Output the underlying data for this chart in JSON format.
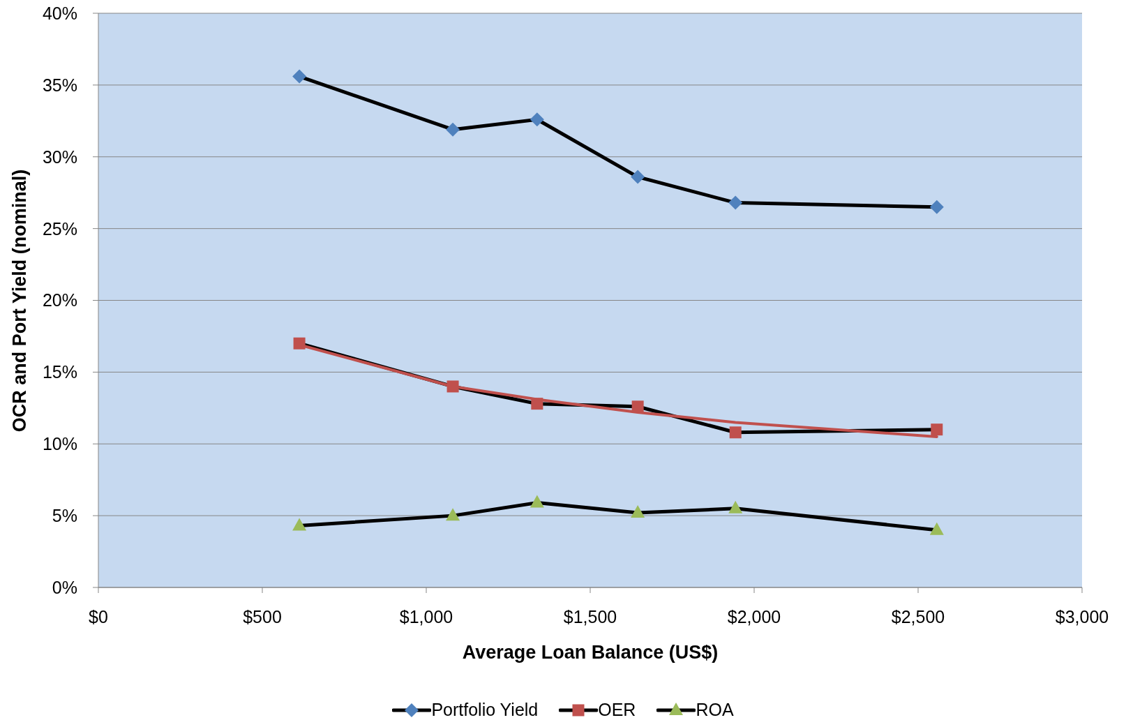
{
  "chart_data": {
    "type": "line",
    "xlabel": "Average Loan Balance (US$)",
    "ylabel": "OCR and Port Yield (nominal)",
    "x": [
      613,
      1081,
      1338,
      1645,
      1943,
      2557
    ],
    "xlim": [
      0,
      3000
    ],
    "xticks": [
      {
        "value": 0,
        "label": "$0"
      },
      {
        "value": 500,
        "label": "$500"
      },
      {
        "value": 1000,
        "label": "$1,000"
      },
      {
        "value": 1500,
        "label": "$1,500"
      },
      {
        "value": 2000,
        "label": "$2,000"
      },
      {
        "value": 2500,
        "label": "$2,500"
      },
      {
        "value": 3000,
        "label": "$3,000"
      }
    ],
    "ylim": [
      0,
      40
    ],
    "yticks": [
      {
        "value": 0,
        "label": "0%"
      },
      {
        "value": 5,
        "label": "5%"
      },
      {
        "value": 10,
        "label": "10%"
      },
      {
        "value": 15,
        "label": "15%"
      },
      {
        "value": 20,
        "label": "20%"
      },
      {
        "value": 25,
        "label": "25%"
      },
      {
        "value": 30,
        "label": "30%"
      },
      {
        "value": 35,
        "label": "35%"
      },
      {
        "value": 40,
        "label": "40%"
      }
    ],
    "grid": "y",
    "legend": "bottom",
    "line_style": "solid",
    "series": [
      {
        "name": "Portfolio Yield",
        "color": "#000000",
        "colors": [
          "#4f81bd",
          "#4f81bd",
          "#4f81bd",
          "#4f81bd",
          "#4f81bd",
          "#4f81bd"
        ],
        "marker": "diamond",
        "values": [
          35.6,
          31.9,
          32.6,
          28.6,
          26.8,
          26.5
        ]
      },
      {
        "name": "OER",
        "color": "#000000",
        "colors": [
          "#c0504d",
          "#c0504d",
          "#c0504d",
          "#c0504d",
          "#c0504d",
          "#c0504d"
        ],
        "marker": "square",
        "values": [
          17.0,
          14.0,
          12.8,
          12.6,
          10.8,
          11.0
        ]
      },
      {
        "name": "ROA",
        "color": "#000000",
        "colors": [
          "#9bbb59",
          "#9bbb59",
          "#9bbb59",
          "#9bbb59",
          "#9bbb59",
          "#9bbb59"
        ],
        "marker": "triangle",
        "values": [
          4.3,
          5.0,
          5.9,
          5.2,
          5.5,
          4.0
        ]
      },
      {
        "type": "line",
        "color": "#c0504d",
        "marker": "none",
        "values": [
          16.9,
          14.0,
          13.1,
          12.2,
          11.5,
          10.5
        ]
      }
    ]
  }
}
